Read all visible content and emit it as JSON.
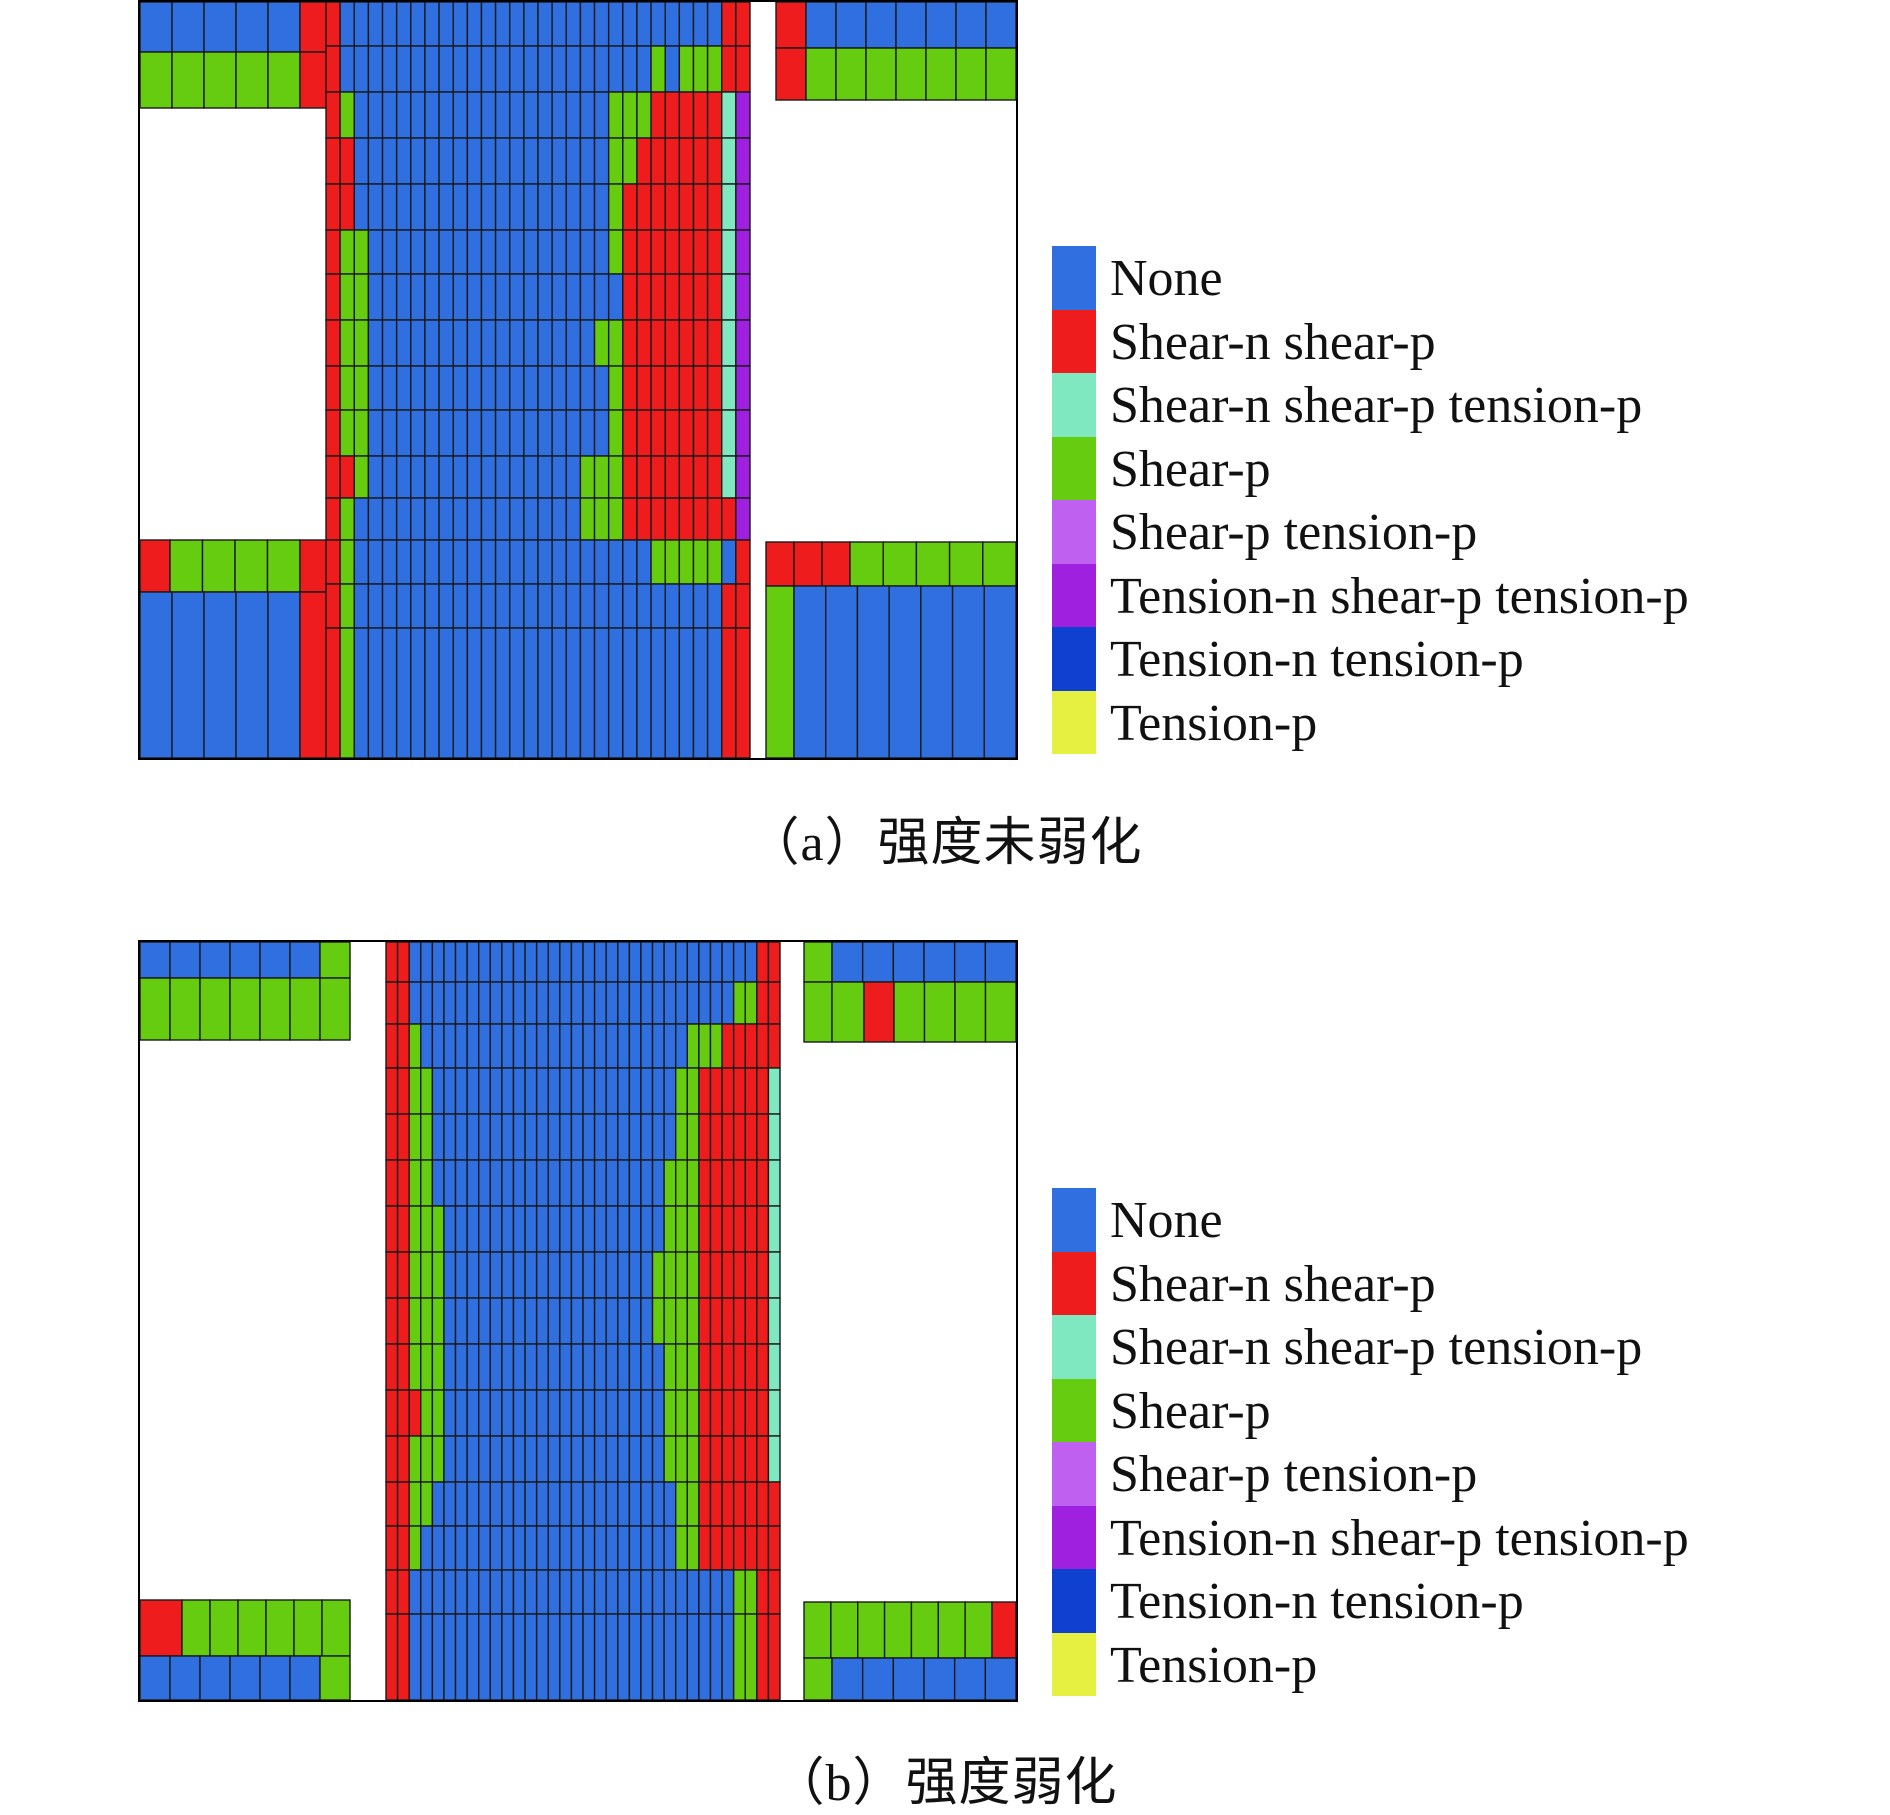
{
  "colors": {
    "none": "#2f6fe0",
    "shear_n_shear_p": "#ee1c1c",
    "shear_n_shear_p_tension_p": "#7fe8c0",
    "shear_p": "#66cc10",
    "shear_p_tension_p": "#c060f0",
    "tension_n_shear_p_tension_p": "#a020e0",
    "tension_n_tension_p": "#1040d0",
    "tension_p": "#e6f040"
  },
  "legend": [
    {
      "key": "none",
      "label": "None"
    },
    {
      "key": "shear_n_shear_p",
      "label": "Shear-n shear-p"
    },
    {
      "key": "shear_n_shear_p_tension_p",
      "label": "Shear-n shear-p tension-p"
    },
    {
      "key": "shear_p",
      "label": "Shear-p"
    },
    {
      "key": "shear_p_tension_p",
      "label": "Shear-p tension-p"
    },
    {
      "key": "tension_n_shear_p_tension_p",
      "label": "Tension-n shear-p tension-p"
    },
    {
      "key": "tension_n_tension_p",
      "label": "Tension-n tension-p"
    },
    {
      "key": "tension_p",
      "label": "Tension-p"
    }
  ],
  "panels": [
    {
      "caption": "（a）强度未弱化"
    },
    {
      "caption": "（b）强度弱化"
    }
  ]
}
